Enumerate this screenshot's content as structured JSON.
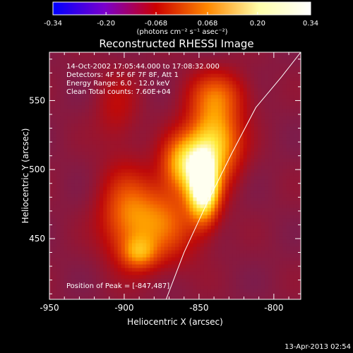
{
  "chart_data": {
    "type": "heatmap",
    "title": "Reconstructed RHESSI Image",
    "xlabel": "Heliocentric X (arcsec)",
    "ylabel": "Heliocentric Y (arcsec)",
    "xlim": [
      -950,
      -782
    ],
    "ylim": [
      406,
      585
    ],
    "x_ticks": [
      -950,
      -900,
      -850,
      -800
    ],
    "y_ticks": [
      450,
      500,
      550
    ],
    "colorbar": {
      "range": [
        -0.34,
        0.34
      ],
      "ticks": [
        "-0.34",
        "-0.20",
        "-0.068",
        "0.068",
        "0.20",
        "0.34"
      ],
      "unit_label": "(photons cm⁻² s⁻¹ asec⁻²)",
      "colormap": [
        "#0000ff",
        "#7a00cc",
        "#cc0000",
        "#ff8800",
        "#ffffaa",
        "#ffffff"
      ]
    },
    "annotations": [
      "14-Oct-2002 17:05:44.000 to 17:08:32.000",
      "Detectors: 4F 5F 6F 7F 8F, Att 1",
      "Energy Range: 6.0 - 12.0 keV",
      "Clean    Total counts: 7.60E+04"
    ],
    "peak_label": "Position of Peak = [-847,487]",
    "peak": {
      "x": -847,
      "y": 487,
      "value": 0.34
    },
    "limb_curve": [
      [
        -872,
        406
      ],
      [
        -860,
        440
      ],
      [
        -845,
        475
      ],
      [
        -828,
        512
      ],
      [
        -812,
        545
      ],
      [
        -795,
        567
      ],
      [
        -782,
        585
      ]
    ],
    "emission_blobs": [
      {
        "x": -847,
        "y": 487,
        "sx": 7,
        "sy": 16,
        "amp": 0.34
      },
      {
        "x": -840,
        "y": 520,
        "sx": 12,
        "sy": 20,
        "amp": 0.23
      },
      {
        "x": -860,
        "y": 505,
        "sx": 10,
        "sy": 14,
        "amp": 0.2
      },
      {
        "x": -878,
        "y": 462,
        "sx": 18,
        "sy": 20,
        "amp": 0.15
      },
      {
        "x": -900,
        "y": 470,
        "sx": 12,
        "sy": 24,
        "amp": 0.09
      },
      {
        "x": -890,
        "y": 440,
        "sx": 8,
        "sy": 8,
        "amp": 0.12
      },
      {
        "x": -838,
        "y": 555,
        "sx": 14,
        "sy": 12,
        "amp": 0.1
      },
      {
        "x": -905,
        "y": 545,
        "sx": 10,
        "sy": 18,
        "amp": 0.05
      }
    ]
  },
  "timestamp": "13-Apr-2013 02:54"
}
